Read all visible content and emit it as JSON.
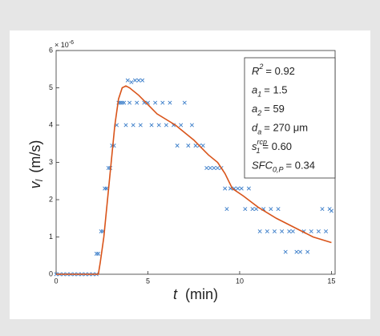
{
  "chart_data": {
    "type": "scatter",
    "x_label": {
      "symbol": "t",
      "unit": "(min)"
    },
    "y_label": {
      "symbol": "v",
      "sub": "l",
      "unit": "(m/s)"
    },
    "y_multiplier": {
      "base": "× 10",
      "exp": "-6"
    },
    "xlim": [
      0,
      15.2
    ],
    "ylim": [
      0,
      6
    ],
    "xticks": [
      0,
      5,
      10,
      15
    ],
    "yticks": [
      0,
      1,
      2,
      3,
      4,
      5,
      6
    ],
    "annotations": [
      {
        "symbol": "R",
        "sup": "2",
        "text": "= 0.92"
      },
      {
        "symbol": "a",
        "sub": "1",
        "text": "= 1.5"
      },
      {
        "symbol": "a",
        "sub": "2",
        "text": "= 59"
      },
      {
        "symbol": "d",
        "sub": "a",
        "text": "= 270 μm"
      },
      {
        "symbol": "s",
        "sub": "1",
        "sup": "rcp",
        "text": "= 0.60"
      },
      {
        "symbol": "SFC",
        "sub": "0,P",
        "text": "= 0.34"
      }
    ],
    "series": [
      {
        "mode": "markers",
        "color": "#3a7dc9",
        "x": [
          0,
          0.2,
          0.4,
          0.6,
          0.8,
          1.0,
          1.2,
          1.4,
          1.6,
          1.8,
          2.0,
          2.2,
          2.2,
          2.3,
          2.45,
          2.55,
          2.65,
          2.75,
          2.85,
          2.95,
          3.05,
          3.15,
          3.3,
          3.4,
          3.5,
          3.6,
          3.7,
          3.8,
          3.9,
          4.0,
          4.1,
          4.2,
          4.3,
          4.4,
          4.5,
          4.6,
          4.7,
          4.8,
          5.0,
          5.2,
          5.4,
          5.6,
          5.8,
          6.0,
          6.2,
          6.4,
          6.6,
          6.8,
          7.0,
          7.2,
          7.4,
          7.6,
          7.8,
          8.0,
          8.2,
          8.4,
          8.6,
          8.8,
          9.0,
          9.2,
          9.3,
          9.5,
          9.7,
          9.9,
          10.1,
          10.3,
          10.5,
          10.7,
          10.9,
          11.1,
          11.3,
          11.5,
          11.7,
          11.9,
          12.1,
          12.3,
          12.5,
          12.7,
          12.9,
          13.1,
          13.3,
          13.5,
          13.7,
          13.9,
          14.3,
          14.5,
          14.7,
          14.9,
          15.0
        ],
        "values": [
          0,
          0,
          0,
          0,
          0,
          0,
          0,
          0,
          0,
          0,
          0,
          0,
          0.55,
          0.55,
          1.15,
          1.15,
          2.3,
          2.3,
          2.85,
          2.85,
          3.45,
          3.45,
          4.0,
          4.6,
          4.6,
          4.6,
          4.6,
          4.0,
          5.2,
          4.6,
          5.15,
          4.0,
          5.2,
          4.6,
          5.2,
          4.0,
          5.2,
          4.6,
          4.6,
          4.0,
          4.6,
          4.0,
          4.6,
          4.0,
          4.6,
          4.0,
          3.45,
          4.0,
          4.6,
          3.45,
          4.0,
          3.45,
          3.45,
          3.45,
          2.85,
          2.85,
          2.85,
          2.85,
          2.85,
          2.3,
          1.75,
          2.3,
          2.3,
          2.3,
          2.3,
          1.75,
          2.3,
          1.75,
          1.75,
          1.15,
          1.75,
          1.15,
          1.75,
          1.15,
          1.75,
          1.15,
          0.6,
          1.15,
          1.15,
          0.6,
          0.6,
          1.15,
          0.6,
          1.15,
          1.15,
          1.75,
          1.15,
          1.75,
          1.7
        ]
      },
      {
        "mode": "line",
        "color": "#d9541a",
        "x": [
          0,
          2.3,
          2.4,
          2.6,
          2.8,
          3.0,
          3.2,
          3.4,
          3.6,
          3.8,
          4.0,
          4.5,
          5.5,
          6.5,
          7.5,
          8.3,
          8.8,
          9.2,
          9.6,
          10.2,
          11,
          12,
          13,
          14,
          15
        ],
        "values": [
          0,
          0,
          0.3,
          1.0,
          2.0,
          3.0,
          4.0,
          4.7,
          5.0,
          5.05,
          5.0,
          4.8,
          4.3,
          4.0,
          3.6,
          3.2,
          3.0,
          2.7,
          2.3,
          2.1,
          1.8,
          1.5,
          1.25,
          1.0,
          0.85
        ]
      }
    ]
  }
}
